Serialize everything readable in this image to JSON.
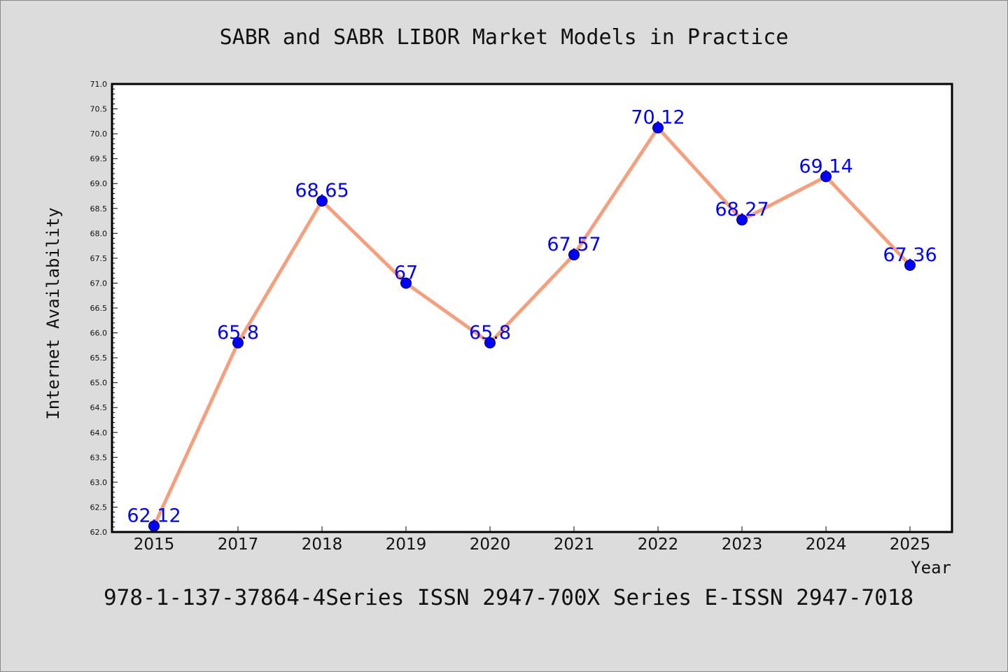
{
  "chart_data": {
    "type": "line",
    "title": "SABR and SABR LIBOR Market Models in Practice",
    "xlabel": "Year",
    "ylabel": "Internet Availability",
    "categories": [
      "2015",
      "2017",
      "2018",
      "2019",
      "2020",
      "2021",
      "2022",
      "2023",
      "2024",
      "2025"
    ],
    "series": [
      {
        "values": [
          62.12,
          65.8,
          68.65,
          67,
          65.8,
          67.57,
          70.12,
          68.27,
          69.14,
          67.36
        ]
      }
    ],
    "data_labels": [
      "62.12",
      "65.8",
      "68.65",
      "67",
      "65.8",
      "67.57",
      "70.12",
      "68.27",
      "69.14",
      "67.36"
    ],
    "ylim": [
      62.0,
      71.0
    ],
    "yticks": [
      "62.0",
      "62.5",
      "63.0",
      "63.5",
      "64.0",
      "64.5",
      "65.0",
      "65.5",
      "66.0",
      "66.5",
      "67.0",
      "67.5",
      "68.0",
      "68.5",
      "69.0",
      "69.5",
      "70.0",
      "70.5",
      "71.0"
    ],
    "grid": false,
    "colors": {
      "line": "#f4a07f",
      "marker": "#0000ff",
      "label": "#0000ff",
      "background": "#dcdcdc",
      "plot": "#ffffff"
    }
  },
  "footer": "978-1-137-37864-4Series ISSN 2947-700X Series E-ISSN 2947-7018"
}
